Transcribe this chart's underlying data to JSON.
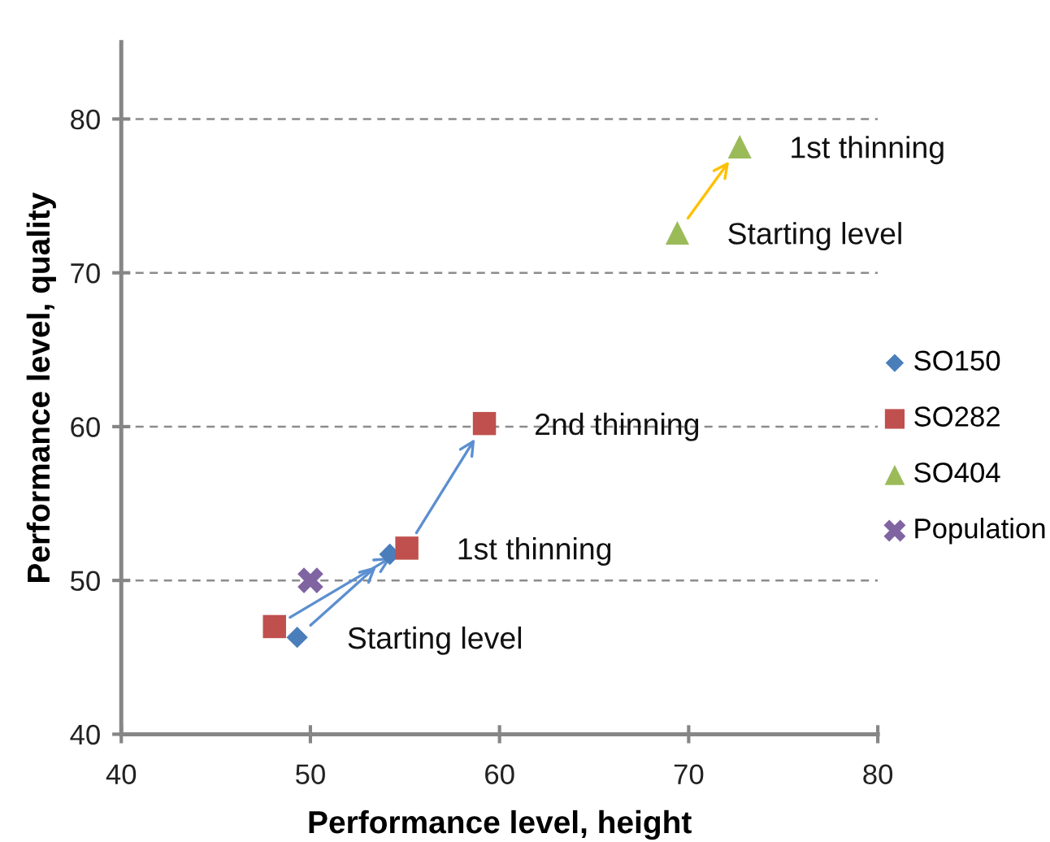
{
  "chart_data": {
    "type": "scatter",
    "xlabel": "Performance level, height",
    "ylabel": "Performance level, quality",
    "xlim": [
      40,
      80
    ],
    "xticks": [
      40,
      50,
      60,
      70,
      80
    ],
    "ylim": [
      40,
      85
    ],
    "yticks": [
      40,
      50,
      60,
      70,
      80
    ],
    "grid": "y",
    "legend": "right",
    "series": [
      {
        "name": "SO150",
        "color": "#4a7ebb",
        "marker": "diamond",
        "x": [
          49.3,
          54.2
        ],
        "values": [
          46.3,
          51.7
        ]
      },
      {
        "name": "SO282",
        "color": "#c0504d",
        "marker": "square",
        "x": [
          48.1,
          55.1,
          59.2
        ],
        "values": [
          47.0,
          52.1,
          60.2
        ]
      },
      {
        "name": "SO404",
        "color": "#9bbb59",
        "marker": "triangle",
        "x": [
          69.4,
          72.7
        ],
        "values": [
          72.6,
          78.2
        ]
      },
      {
        "name": "Population",
        "color": "#8064a2",
        "marker": "cross",
        "x": [
          50
        ],
        "values": [
          50
        ]
      }
    ],
    "annotations": [
      {
        "text": "Starting level",
        "x": 49.3,
        "y": 46.3
      },
      {
        "text": "1st thinning",
        "x": 55.1,
        "y": 52.1
      },
      {
        "text": "2nd thinning",
        "x": 59.2,
        "y": 60.2
      },
      {
        "text": "Starting level",
        "x": 69.4,
        "y": 72.6
      },
      {
        "text": "1st thinning",
        "x": 72.7,
        "y": 78.2
      }
    ]
  }
}
